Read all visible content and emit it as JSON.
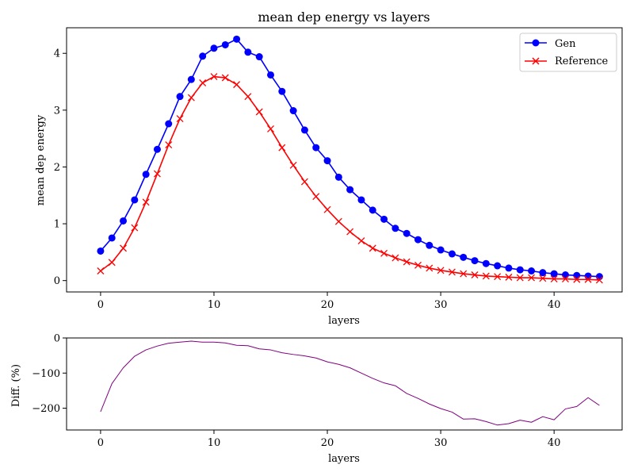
{
  "chart_data": [
    {
      "type": "line",
      "title": "mean dep energy vs layers",
      "xlabel": "layers",
      "ylabel": "mean dep energy",
      "xlim": [
        -3,
        46
      ],
      "ylim": [
        -0.2,
        4.45
      ],
      "xticks": [
        0,
        10,
        20,
        30,
        40
      ],
      "yticks": [
        0,
        1,
        2,
        3,
        4
      ],
      "legend_placement": "top-right",
      "grid": false,
      "x": [
        0,
        1,
        2,
        3,
        4,
        5,
        6,
        7,
        8,
        9,
        10,
        11,
        12,
        13,
        14,
        15,
        16,
        17,
        18,
        19,
        20,
        21,
        22,
        23,
        24,
        25,
        26,
        27,
        28,
        29,
        30,
        31,
        32,
        33,
        34,
        35,
        36,
        37,
        38,
        39,
        40,
        41,
        42,
        43,
        44
      ],
      "series": [
        {
          "name": "Gen",
          "color": "#0000ff",
          "marker": "circle",
          "values": [
            0.52,
            0.75,
            1.05,
            1.42,
            1.87,
            2.31,
            2.76,
            3.24,
            3.54,
            3.95,
            4.09,
            4.15,
            4.25,
            4.02,
            3.94,
            3.62,
            3.33,
            2.99,
            2.65,
            2.34,
            2.11,
            1.82,
            1.6,
            1.42,
            1.24,
            1.08,
            0.92,
            0.83,
            0.72,
            0.62,
            0.54,
            0.47,
            0.41,
            0.35,
            0.3,
            0.26,
            0.22,
            0.19,
            0.17,
            0.14,
            0.12,
            0.1,
            0.09,
            0.08,
            0.07
          ]
        },
        {
          "name": "Reference",
          "color": "#ff0000",
          "marker": "x",
          "values": [
            0.17,
            0.32,
            0.57,
            0.93,
            1.38,
            1.88,
            2.39,
            2.85,
            3.22,
            3.48,
            3.59,
            3.57,
            3.45,
            3.24,
            2.97,
            2.67,
            2.34,
            2.03,
            1.74,
            1.48,
            1.25,
            1.04,
            0.86,
            0.7,
            0.57,
            0.48,
            0.4,
            0.33,
            0.27,
            0.22,
            0.18,
            0.15,
            0.12,
            0.1,
            0.08,
            0.07,
            0.06,
            0.05,
            0.05,
            0.04,
            0.03,
            0.03,
            0.02,
            0.02,
            0.01
          ]
        }
      ]
    },
    {
      "type": "line",
      "title": "",
      "xlabel": "layers",
      "ylabel": "Diff. (%)",
      "xlim": [
        -3,
        46
      ],
      "ylim": [
        -262,
        0
      ],
      "xticks": [
        0,
        10,
        20,
        30,
        40
      ],
      "yticks": [
        0,
        -100,
        -200
      ],
      "reference_line": 0,
      "grid": false,
      "x": [
        0,
        1,
        2,
        3,
        4,
        5,
        6,
        7,
        8,
        9,
        10,
        11,
        12,
        13,
        14,
        15,
        16,
        17,
        18,
        19,
        20,
        21,
        22,
        23,
        24,
        25,
        26,
        27,
        28,
        29,
        30,
        31,
        32,
        33,
        34,
        35,
        36,
        37,
        38,
        39,
        40,
        41,
        42,
        43,
        44
      ],
      "series": [
        {
          "color": "#800080",
          "values": [
            -210,
            -130,
            -85,
            -52,
            -34,
            -23,
            -15,
            -12,
            -9,
            -12,
            -12,
            -14,
            -21,
            -22,
            -31,
            -34,
            -42,
            -47,
            -51,
            -57,
            -68,
            -75,
            -85,
            -100,
            -115,
            -128,
            -136,
            -158,
            -172,
            -188,
            -201,
            -211,
            -231,
            -230,
            -238,
            -248,
            -244,
            -234,
            -240,
            -224,
            -233,
            -202,
            -195,
            -170,
            -192
          ]
        }
      ]
    }
  ]
}
